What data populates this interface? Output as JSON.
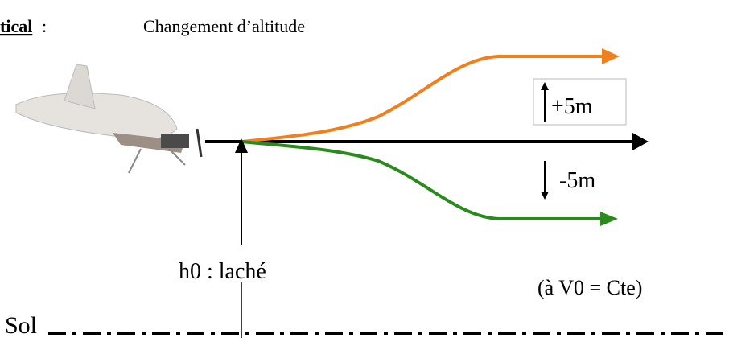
{
  "header": {
    "title": "tical",
    "separator": ":",
    "subtitle": "Changement d’altitude"
  },
  "labels": {
    "up": "+5m",
    "down": "-5m",
    "release": "h0 : laché",
    "speed": "(à V0 = Cte)",
    "ground": "Sol"
  }
}
